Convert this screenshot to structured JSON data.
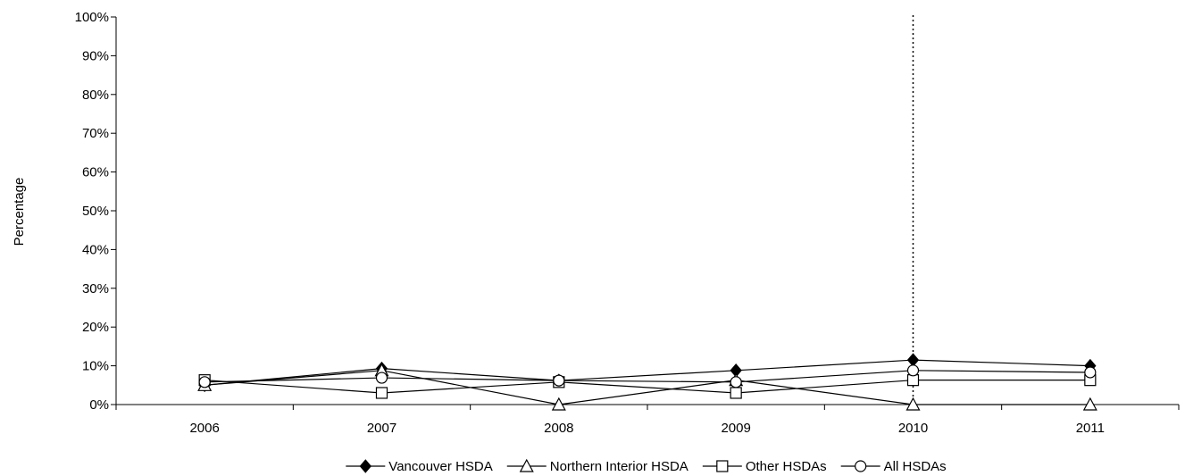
{
  "chart_data": {
    "type": "line",
    "title": "",
    "xlabel": "",
    "ylabel": "Percentage",
    "categories": [
      "2006",
      "2007",
      "2008",
      "2009",
      "2010",
      "2011"
    ],
    "ylim": [
      0,
      100
    ],
    "yticks": [
      "0%",
      "10%",
      "20%",
      "30%",
      "40%",
      "50%",
      "60%",
      "70%",
      "80%",
      "90%",
      "100%"
    ],
    "grid": false,
    "legend_position": "bottom",
    "reference_line": {
      "x": "2010",
      "style": "dotted"
    },
    "series": [
      {
        "name": "Vancouver HSDA",
        "marker": "diamond-filled",
        "values": [
          5.0,
          9.3,
          6.2,
          8.8,
          11.5,
          10.0
        ]
      },
      {
        "name": "Northern Interior HSDA",
        "marker": "triangle-open",
        "values": [
          5.0,
          8.8,
          0.0,
          6.3,
          0.0,
          0.0
        ]
      },
      {
        "name": "Other HSDAs",
        "marker": "square-open",
        "values": [
          6.3,
          3.0,
          5.8,
          3.0,
          6.3,
          6.3
        ]
      },
      {
        "name": "All HSDAs",
        "marker": "circle-open",
        "values": [
          5.8,
          6.9,
          6.2,
          5.8,
          8.8,
          8.3
        ]
      }
    ]
  }
}
